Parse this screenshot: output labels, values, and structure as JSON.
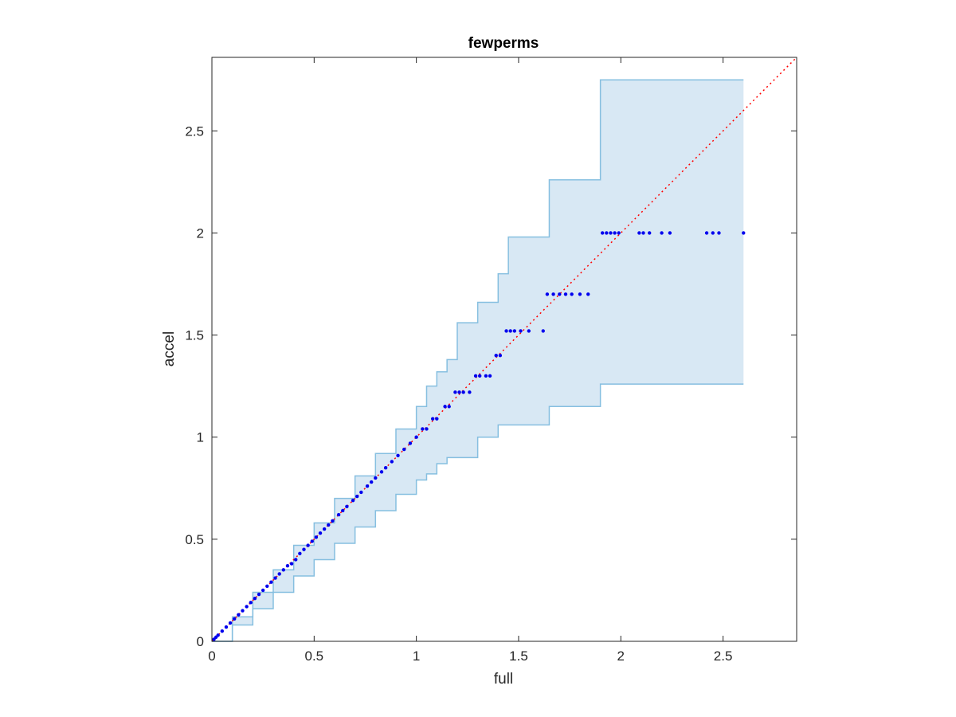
{
  "chart_data": {
    "type": "scatter",
    "title": "fewperms",
    "xlabel": "full",
    "ylabel": "accel",
    "xlim": [
      0,
      2.86
    ],
    "ylim": [
      0,
      2.86
    ],
    "xticks": [
      "0",
      "0.5",
      "1",
      "1.5",
      "2",
      "2.5"
    ],
    "yticks": [
      "0",
      "0.5",
      "1",
      "1.5",
      "2",
      "2.5"
    ],
    "xtick_values": [
      0,
      0.5,
      1,
      1.5,
      2,
      2.5
    ],
    "ytick_values": [
      0,
      0.5,
      1,
      1.5,
      2,
      2.5
    ],
    "grid": false,
    "colors": {
      "points": "#0000ee",
      "band_fill": "#d8e8f4",
      "band_edge": "#86bfe0",
      "reference": "#ff0000"
    },
    "reference_line": {
      "style": "dotted",
      "from": [
        0,
        0
      ],
      "to": [
        2.86,
        2.86
      ]
    },
    "band": {
      "x": [
        0,
        0.1,
        0.2,
        0.3,
        0.4,
        0.5,
        0.6,
        0.7,
        0.8,
        0.9,
        1.0,
        1.05,
        1.1,
        1.15,
        1.2,
        1.3,
        1.4,
        1.45,
        1.6,
        1.65,
        1.85,
        1.9,
        2.6
      ],
      "upper": [
        0,
        0.12,
        0.24,
        0.35,
        0.47,
        0.58,
        0.7,
        0.81,
        0.92,
        1.04,
        1.15,
        1.25,
        1.32,
        1.38,
        1.56,
        1.66,
        1.8,
        1.98,
        1.98,
        2.26,
        2.26,
        2.75,
        2.75
      ],
      "lower": [
        0,
        0.08,
        0.16,
        0.24,
        0.32,
        0.4,
        0.48,
        0.56,
        0.64,
        0.72,
        0.79,
        0.82,
        0.87,
        0.9,
        0.9,
        1.0,
        1.06,
        1.06,
        1.06,
        1.15,
        1.15,
        1.26,
        1.26
      ]
    },
    "series": [
      {
        "x": [
          0.01,
          0.02,
          0.03,
          0.05,
          0.07,
          0.09,
          0.11,
          0.13,
          0.15,
          0.17,
          0.19,
          0.21,
          0.23,
          0.25,
          0.27,
          0.29,
          0.31,
          0.33,
          0.35,
          0.37,
          0.39,
          0.41,
          0.43,
          0.45,
          0.47,
          0.49,
          0.51,
          0.53,
          0.55,
          0.57,
          0.59,
          0.62,
          0.64,
          0.66,
          0.69,
          0.71,
          0.73,
          0.76,
          0.78,
          0.8,
          0.83,
          0.85,
          0.88,
          0.91,
          0.94,
          0.97,
          1.0,
          1.03,
          1.05,
          1.08,
          1.1,
          1.14,
          1.16,
          1.19,
          1.21,
          1.23,
          1.26,
          1.29,
          1.31,
          1.34,
          1.36,
          1.39,
          1.41,
          1.44,
          1.46,
          1.48,
          1.51,
          1.55,
          1.62,
          1.64,
          1.67,
          1.7,
          1.73,
          1.76,
          1.8,
          1.84,
          1.91,
          1.93,
          1.95,
          1.97,
          1.99,
          2.09,
          2.11,
          2.14,
          2.2,
          2.24,
          2.42,
          2.45,
          2.48,
          2.6
        ],
        "y": [
          0.01,
          0.02,
          0.03,
          0.05,
          0.07,
          0.09,
          0.11,
          0.13,
          0.15,
          0.17,
          0.19,
          0.21,
          0.23,
          0.25,
          0.27,
          0.29,
          0.31,
          0.33,
          0.35,
          0.37,
          0.38,
          0.4,
          0.43,
          0.45,
          0.47,
          0.49,
          0.51,
          0.53,
          0.55,
          0.57,
          0.59,
          0.62,
          0.64,
          0.66,
          0.69,
          0.71,
          0.73,
          0.76,
          0.78,
          0.8,
          0.83,
          0.85,
          0.88,
          0.91,
          0.94,
          0.97,
          1.0,
          1.04,
          1.04,
          1.09,
          1.09,
          1.15,
          1.15,
          1.22,
          1.22,
          1.22,
          1.22,
          1.3,
          1.3,
          1.3,
          1.3,
          1.4,
          1.4,
          1.52,
          1.52,
          1.52,
          1.52,
          1.52,
          1.52,
          1.7,
          1.7,
          1.7,
          1.7,
          1.7,
          1.7,
          1.7,
          2.0,
          2.0,
          2.0,
          2.0,
          2.0,
          2.0,
          2.0,
          2.0,
          2.0,
          2.0,
          2.0,
          2.0,
          2.0,
          2.0
        ]
      }
    ]
  }
}
